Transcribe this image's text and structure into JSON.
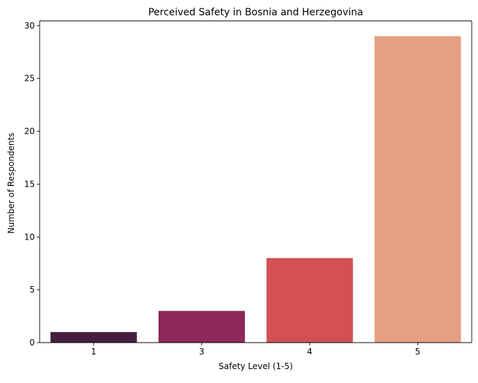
{
  "chart_data": {
    "type": "bar",
    "title": "Perceived Safety in Bosnia and Herzegovina",
    "xlabel": "Safety Level (1-5)",
    "ylabel": "Number of Respondents",
    "categories": [
      "1",
      "3",
      "4",
      "5"
    ],
    "values": [
      1,
      3,
      8,
      29
    ],
    "colors": [
      "#45203f",
      "#8d2859",
      "#d35155",
      "#e4a080"
    ],
    "ylim": [
      0,
      30.45
    ],
    "yticks": [
      0,
      5,
      10,
      15,
      20,
      25,
      30
    ],
    "grid": false,
    "legend": "none"
  }
}
